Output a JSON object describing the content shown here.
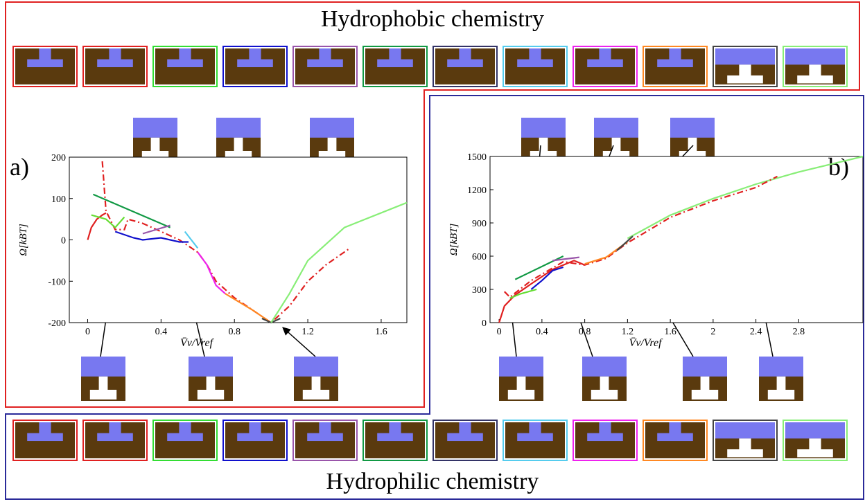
{
  "top_title": "Hydrophobic chemistry",
  "bottom_title": "Hydrophilic chemistry",
  "chart_data": [
    {
      "type": "line",
      "panel_label": "a)",
      "panel_color": "#e02020",
      "xlabel": "V̄v/Vref",
      "ylabel": "Ω[kBT]",
      "xlim": [
        -0.1,
        1.74
      ],
      "ylim": [
        -200,
        200
      ],
      "xticks": [
        0,
        0.4,
        0.8,
        1.2,
        1.6
      ],
      "yticks": [
        -200,
        -100,
        0,
        100,
        200
      ],
      "series": [
        {
          "color": "#e02020",
          "dash": "dashdot",
          "x": [
            0.08,
            0.1,
            0.15,
            0.2,
            0.22,
            0.3,
            0.4,
            0.5,
            0.6,
            0.65,
            0.7,
            0.8,
            0.9,
            1.0,
            1.1,
            1.2,
            1.3,
            1.43
          ],
          "values": [
            190,
            70,
            25,
            25,
            50,
            40,
            20,
            0,
            -30,
            -60,
            -100,
            -140,
            -170,
            -200,
            -160,
            -100,
            -60,
            -20
          ]
        },
        {
          "color": "#e02020",
          "dash": "solid",
          "x": [
            0,
            0.02,
            0.05,
            0.08,
            0.1
          ],
          "values": [
            0,
            30,
            50,
            60,
            65
          ]
        },
        {
          "color": "#66dd33",
          "dash": "solid",
          "x": [
            0.02,
            0.1,
            0.15,
            0.2
          ],
          "values": [
            60,
            50,
            30,
            55
          ]
        },
        {
          "color": "#119944",
          "dash": "solid",
          "x": [
            0.03,
            0.45
          ],
          "values": [
            110,
            30
          ]
        },
        {
          "color": "#1010cc",
          "dash": "solid",
          "x": [
            0.15,
            0.25,
            0.3,
            0.4,
            0.5,
            0.55
          ],
          "values": [
            20,
            5,
            0,
            5,
            -5,
            -5
          ]
        },
        {
          "color": "#9955aa",
          "dash": "solid",
          "x": [
            0.3,
            0.45
          ],
          "values": [
            15,
            35
          ]
        },
        {
          "color": "#55ccee",
          "dash": "solid",
          "x": [
            0.53,
            0.6
          ],
          "values": [
            20,
            -20
          ]
        },
        {
          "color": "#ee22ee",
          "dash": "solid",
          "x": [
            0.6,
            0.65,
            0.7,
            0.75
          ],
          "values": [
            -30,
            -60,
            -110,
            -130
          ]
        },
        {
          "color": "#ff8822",
          "dash": "solid",
          "x": [
            0.75,
            0.9,
            1.0
          ],
          "values": [
            -130,
            -170,
            -200
          ]
        },
        {
          "color": "#444444",
          "dash": "solid",
          "x": [
            0.95,
            1.0,
            1.05
          ],
          "values": [
            -190,
            -200,
            -190
          ]
        },
        {
          "color": "#88ee77",
          "dash": "solid",
          "x": [
            1.0,
            1.1,
            1.2,
            1.4,
            1.74
          ],
          "values": [
            -200,
            -130,
            -50,
            30,
            90
          ]
        }
      ]
    },
    {
      "type": "line",
      "panel_label": "b)",
      "panel_color": "#2a2a99",
      "xlabel": "V̄v/Vref",
      "ylabel": "Ω[kBT]",
      "xlim": [
        -0.085,
        3.4
      ],
      "ylim": [
        0,
        1500
      ],
      "xticks": [
        0,
        0.4,
        0.8,
        1.2,
        1.6,
        2,
        2.4,
        2.8
      ],
      "yticks": [
        0,
        300,
        600,
        900,
        1200,
        1500
      ],
      "series": [
        {
          "color": "#88ee77",
          "dash": "solid",
          "x": [
            1.2,
            1.6,
            2.0,
            2.4,
            2.8,
            3.4
          ],
          "values": [
            760,
            970,
            1120,
            1250,
            1360,
            1500
          ]
        },
        {
          "color": "#e02020",
          "dash": "dashdot",
          "x": [
            0.05,
            0.1,
            0.3,
            0.6,
            0.8,
            1.0,
            1.2,
            1.6,
            2.0,
            2.4,
            2.6
          ],
          "values": [
            280,
            230,
            380,
            550,
            520,
            580,
            720,
            950,
            1100,
            1220,
            1320
          ]
        },
        {
          "color": "#e02020",
          "dash": "solid",
          "x": [
            0,
            0.05,
            0.15,
            0.3,
            0.5,
            0.7,
            0.8
          ],
          "values": [
            0,
            150,
            250,
            350,
            480,
            560,
            520
          ]
        },
        {
          "color": "#66dd33",
          "dash": "solid",
          "x": [
            0.1,
            0.2,
            0.35
          ],
          "values": [
            220,
            260,
            300
          ]
        },
        {
          "color": "#1010cc",
          "dash": "solid",
          "x": [
            0.3,
            0.4,
            0.5,
            0.6
          ],
          "values": [
            300,
            380,
            470,
            500
          ]
        },
        {
          "color": "#119944",
          "dash": "solid",
          "x": [
            0.15,
            0.6
          ],
          "values": [
            390,
            600
          ]
        },
        {
          "color": "#9955aa",
          "dash": "solid",
          "x": [
            0.5,
            0.75
          ],
          "values": [
            560,
            590
          ]
        },
        {
          "color": "#ff8822",
          "dash": "solid",
          "x": [
            0.8,
            1.0,
            1.2
          ],
          "values": [
            530,
            590,
            730
          ]
        },
        {
          "color": "#444444",
          "dash": "solid",
          "x": [
            1.1,
            1.25
          ],
          "values": [
            650,
            780
          ]
        }
      ]
    }
  ]
}
